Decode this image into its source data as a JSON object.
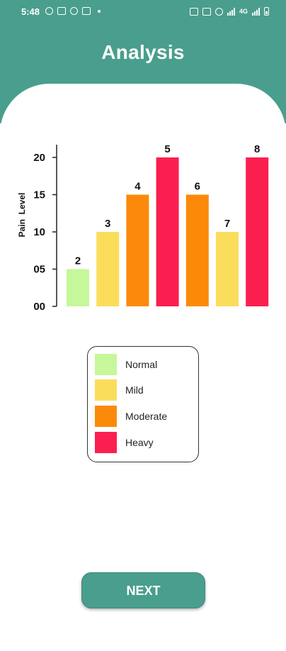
{
  "status_bar": {
    "time": "5:48",
    "network": "4G",
    "icons": [
      "whatsapp-icon",
      "instagram-icon",
      "messenger-icon",
      "gmail-icon",
      "notification-dot",
      "vibrate-icon",
      "volte-icon",
      "alarm-icon",
      "signal-icon",
      "battery-icon"
    ]
  },
  "header": {
    "title": "Analysis"
  },
  "chart_data": {
    "type": "bar",
    "ylabel": "Pain  Level",
    "xlabel": "",
    "y_ticks": [
      "00",
      "05",
      "10",
      "15",
      "20"
    ],
    "ylim": [
      0,
      21
    ],
    "grid": false,
    "bars": [
      {
        "label": "2",
        "value": 5,
        "category": "Normal"
      },
      {
        "label": "3",
        "value": 10,
        "category": "Mild"
      },
      {
        "label": "4",
        "value": 15,
        "category": "Moderate"
      },
      {
        "label": "5",
        "value": 20,
        "category": "Heavy"
      },
      {
        "label": "6",
        "value": 15,
        "category": "Moderate"
      },
      {
        "label": "7",
        "value": 10,
        "category": "Mild"
      },
      {
        "label": "8",
        "value": 20,
        "category": "Heavy"
      }
    ],
    "colors": {
      "Normal": "#c6f79a",
      "Mild": "#fbdd5c",
      "Moderate": "#fb8a0a",
      "Heavy": "#fb1f4f"
    }
  },
  "legend": {
    "items": [
      {
        "label": "Normal",
        "color": "#c6f79a"
      },
      {
        "label": "Mild",
        "color": "#fbdd5c"
      },
      {
        "label": "Moderate",
        "color": "#fb8a0a"
      },
      {
        "label": "Heavy",
        "color": "#fb1f4f"
      }
    ]
  },
  "actions": {
    "next_label": "NEXT"
  },
  "colors": {
    "primary": "#4a9e8d"
  }
}
